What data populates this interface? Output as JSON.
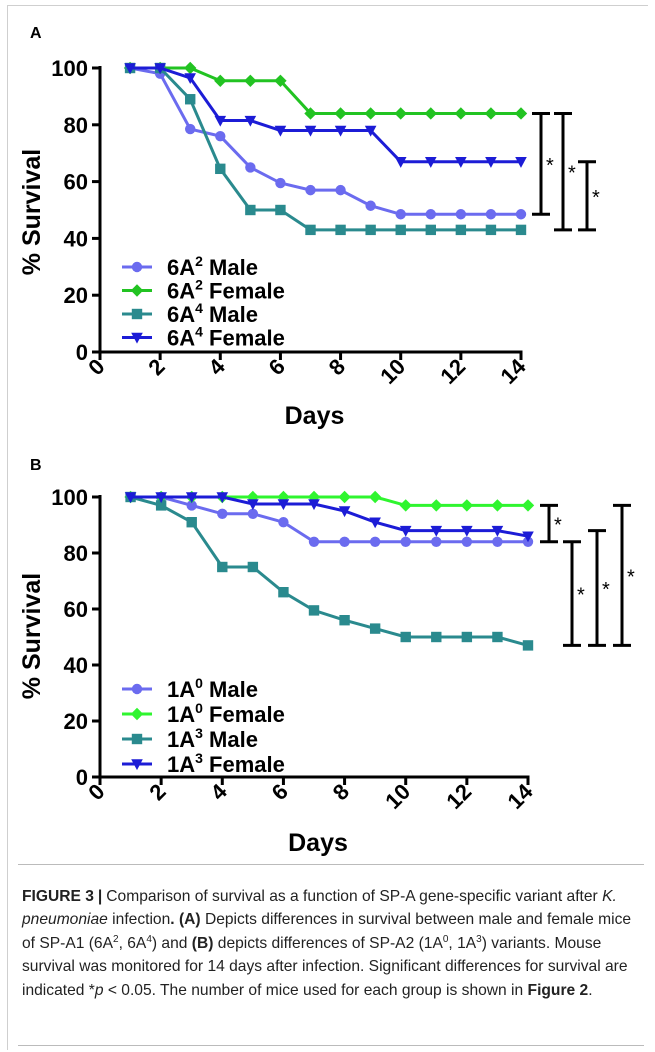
{
  "caption": {
    "figure_label": "FIGURE 3",
    "separator": "|",
    "s1": "Comparison of survival as a function of SP-A gene-specific variant after ",
    "s1_italic": "K. pneumoniae",
    "s1_end": " infection",
    "s1_dot": ".",
    "panel_a": "(A)",
    "s2": " Depicts differences in survival between male and female mice of SP-A1 (6A",
    "s2_sup1": "2",
    "s2_mid": ", 6A",
    "s2_sup2": "4",
    "s2_end": ") and ",
    "panel_b": "(B)",
    "s3": " depicts differences of SP-A2 (1A",
    "s3_sup1": "0",
    "s3_mid": ", 1A",
    "s3_sup2": "3",
    "s3_end": ") variants. Mouse survival was monitored for 14 days after infection. Significant differences for survival are indicated *",
    "p_italic": "p",
    "s4": " < 0.05. The number of mice used for each group is shown in ",
    "fig_ref": "Figure 2",
    "s4_end": "."
  },
  "chart_data": [
    {
      "panel": "A",
      "type": "line",
      "xlabel": "Days",
      "ylabel": "% Survival",
      "xlim": [
        0,
        14
      ],
      "ylim": [
        0,
        100
      ],
      "xticks": [
        "0",
        "2",
        "4",
        "6",
        "8",
        "10",
        "12",
        "14"
      ],
      "yticks": [
        "0",
        "20",
        "40",
        "60",
        "80",
        "100"
      ],
      "x": [
        1,
        2,
        3,
        4,
        5,
        6,
        7,
        8,
        9,
        10,
        11,
        12,
        13,
        14
      ],
      "legend_position": "bottom-left",
      "series": [
        {
          "base": "6A",
          "sup": "2",
          "suffix": " Male",
          "color": "#6b6bef",
          "marker": "circle",
          "values": [
            100,
            98,
            78.5,
            76,
            65,
            59.5,
            57,
            57,
            51.5,
            48.5,
            48.5,
            48.5,
            48.5,
            48.5
          ]
        },
        {
          "base": "6A",
          "sup": "2",
          "suffix": " Female",
          "color": "#22c322",
          "marker": "diamond",
          "values": [
            100,
            100,
            100,
            95.5,
            95.5,
            95.5,
            84,
            84,
            84,
            84,
            84,
            84,
            84,
            84
          ]
        },
        {
          "base": "6A",
          "sup": "4",
          "suffix": " Male",
          "color": "#2a8a8e",
          "marker": "square",
          "values": [
            100,
            100,
            89,
            64.5,
            50,
            50,
            43,
            43,
            43,
            43,
            43,
            43,
            43,
            43
          ]
        },
        {
          "base": "6A",
          "sup": "4",
          "suffix": " Female",
          "color": "#1c1cd6",
          "marker": "triangle-down",
          "values": [
            100,
            100,
            96.5,
            81.5,
            81.5,
            78,
            78,
            78,
            78,
            67,
            67,
            67,
            67,
            67
          ]
        }
      ],
      "significance": [
        {
          "from": 84,
          "to": 48.5,
          "label": "*"
        },
        {
          "from": 84,
          "to": 43,
          "label": "*"
        },
        {
          "from": 67,
          "to": 43,
          "label": "*"
        }
      ]
    },
    {
      "panel": "B",
      "type": "line",
      "xlabel": "Days",
      "ylabel": "% Survival",
      "xlim": [
        0,
        14
      ],
      "ylim": [
        0,
        100
      ],
      "xticks": [
        "0",
        "2",
        "4",
        "6",
        "8",
        "10",
        "12",
        "14"
      ],
      "yticks": [
        "0",
        "20",
        "40",
        "60",
        "80",
        "100"
      ],
      "x": [
        1,
        2,
        3,
        4,
        5,
        6,
        7,
        8,
        9,
        10,
        11,
        12,
        13,
        14
      ],
      "legend_position": "bottom-left",
      "series": [
        {
          "base": "1A",
          "sup": "0",
          "suffix": " Male",
          "color": "#6b6bef",
          "marker": "circle",
          "values": [
            100,
            100,
            97,
            94,
            94,
            91,
            84,
            84,
            84,
            84,
            84,
            84,
            84,
            84
          ]
        },
        {
          "base": "1A",
          "sup": "0",
          "suffix": " Female",
          "color": "#2ff52f",
          "marker": "diamond",
          "values": [
            100,
            100,
            100,
            100,
            100,
            100,
            100,
            100,
            100,
            97,
            97,
            97,
            97,
            97
          ]
        },
        {
          "base": "1A",
          "sup": "3",
          "suffix": " Male",
          "color": "#2a8a8e",
          "marker": "square",
          "values": [
            100,
            97,
            91,
            75,
            75,
            66,
            59.5,
            56,
            53,
            50,
            50,
            50,
            50,
            47
          ]
        },
        {
          "base": "1A",
          "sup": "3",
          "suffix": " Female",
          "color": "#1c1cd6",
          "marker": "triangle-down",
          "values": [
            100,
            100,
            100,
            100,
            97.5,
            97.5,
            97.5,
            95,
            91,
            88,
            88,
            88,
            88,
            86
          ]
        }
      ],
      "significance": [
        {
          "from": 97,
          "to": 84,
          "label": "*"
        },
        {
          "from": 84,
          "to": 47,
          "label": "*"
        },
        {
          "from": 88,
          "to": 47,
          "label": "*"
        },
        {
          "from": 97,
          "to": 47,
          "label": "*"
        }
      ]
    }
  ]
}
